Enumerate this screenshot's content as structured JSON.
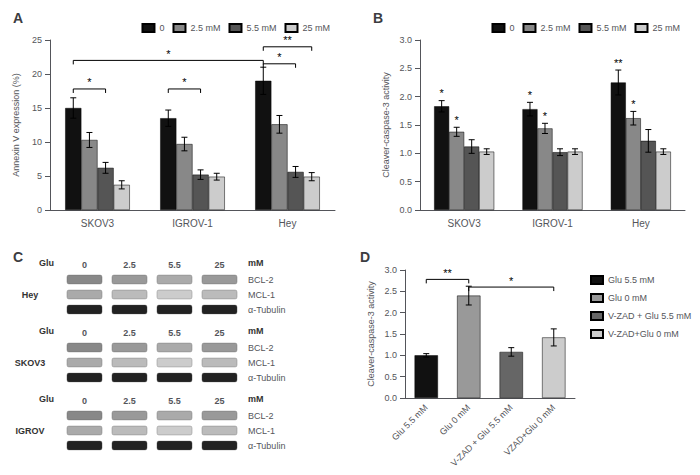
{
  "chart_data": [
    {
      "type": "bar",
      "title": "A",
      "ylabel": "Annexin V expression (%)",
      "categories": [
        "SKOV3",
        "IGROV-1",
        "Hey"
      ],
      "series": [
        {
          "name": "0",
          "color": "#111111",
          "values": [
            15.0,
            13.5,
            19.0
          ],
          "errors": [
            1.5,
            1.2,
            2.0
          ]
        },
        {
          "name": "2.5 mM",
          "color": "#888888",
          "values": [
            10.3,
            9.7,
            12.6
          ],
          "errors": [
            1.1,
            1.0,
            1.3
          ]
        },
        {
          "name": "5.5 mM",
          "color": "#555555",
          "values": [
            6.2,
            5.2,
            5.6
          ],
          "errors": [
            0.8,
            0.7,
            0.8
          ]
        },
        {
          "name": "25 mM",
          "color": "#cccccc",
          "values": [
            3.7,
            4.9,
            4.9
          ],
          "errors": [
            0.6,
            0.5,
            0.6
          ]
        }
      ],
      "ylim": [
        0,
        25
      ],
      "yticks": [
        0,
        5,
        10,
        15,
        20,
        25
      ],
      "grid": false,
      "legend": "upper right",
      "annotations": [
        {
          "text": "*",
          "from": [
            0,
            0
          ],
          "to": [
            0,
            2
          ],
          "y": 17.8
        },
        {
          "text": "*",
          "from": [
            1,
            0
          ],
          "to": [
            1,
            2
          ],
          "y": 17.8
        },
        {
          "text": "*",
          "from": [
            0,
            0
          ],
          "to": [
            2,
            0
          ],
          "y": 22.0
        },
        {
          "text": "**",
          "from": [
            2,
            0
          ],
          "to": [
            2,
            3
          ],
          "y": 24.0
        },
        {
          "text": "*",
          "from": [
            2,
            0
          ],
          "to": [
            2,
            2
          ],
          "y": 21.5
        }
      ]
    },
    {
      "type": "bar",
      "title": "B",
      "ylabel": "Cleaver-caspase-3 activity",
      "categories": [
        "SKOV3",
        "IGROV-1",
        "Hey"
      ],
      "series": [
        {
          "name": "0",
          "color": "#111111",
          "values": [
            1.83,
            1.78,
            2.25
          ],
          "errors": [
            0.1,
            0.12,
            0.22
          ]
        },
        {
          "name": "2.5 mM",
          "color": "#888888",
          "values": [
            1.38,
            1.44,
            1.62
          ],
          "errors": [
            0.08,
            0.09,
            0.12
          ]
        },
        {
          "name": "5.5 mM",
          "color": "#555555",
          "values": [
            1.12,
            1.02,
            1.22
          ],
          "errors": [
            0.12,
            0.06,
            0.2
          ]
        },
        {
          "name": "25 mM",
          "color": "#cccccc",
          "values": [
            1.03,
            1.03,
            1.03
          ],
          "errors": [
            0.05,
            0.05,
            0.05
          ]
        }
      ],
      "ylim": [
        0,
        3.0
      ],
      "yticks": [
        {
          "value": 0,
          "label": "0.0"
        },
        {
          "value": 0.5,
          "label": "0.5"
        },
        {
          "value": 1,
          "label": "1.0"
        },
        {
          "value": 1.5,
          "label": "1.5"
        },
        {
          "value": 2,
          "label": "2.0"
        },
        {
          "value": 2.5,
          "label": "2.5"
        },
        {
          "value": 3,
          "label": "3.0"
        }
      ],
      "grid": false,
      "legend": "upper right",
      "annotations": [
        {
          "text": "*",
          "at": [
            0,
            0
          ]
        },
        {
          "text": "*",
          "at": [
            0,
            1
          ]
        },
        {
          "text": "*",
          "at": [
            1,
            0
          ]
        },
        {
          "text": "*",
          "at": [
            1,
            1
          ]
        },
        {
          "text": "**",
          "at": [
            2,
            0
          ]
        },
        {
          "text": "*",
          "at": [
            2,
            1
          ]
        }
      ]
    },
    {
      "type": "blot",
      "title": "C",
      "categories": [
        "0",
        "2.5",
        "5.5",
        "25"
      ],
      "annotations": [
        "Glu",
        "mM"
      ],
      "groups": [
        "Hey",
        "SKOV3",
        "IGROV"
      ],
      "bands": [
        {
          "name": "BCL-2",
          "colors": [
            "#888888",
            "#999999",
            "#aaaaaa",
            "#999999"
          ]
        },
        {
          "name": "MCL-1",
          "colors": [
            "#aaaaaa",
            "#bbbbbb",
            "#cccccc",
            "#bbbbbb"
          ]
        },
        {
          "name": "α-Tubulin",
          "colors": [
            "#222222",
            "#222222",
            "#222222",
            "#222222"
          ]
        }
      ]
    },
    {
      "type": "bar",
      "title": "D",
      "ylabel": "Cleaver-caspase-3 activity",
      "categories": [
        "Glu 5.5 mM",
        "Glu 0 mM",
        "V-ZAD + Glu 5.5 mM",
        "VZAD+Glu 0 mM"
      ],
      "values": [
        1.0,
        2.4,
        1.08,
        1.42
      ],
      "errors": [
        0.04,
        0.22,
        0.1,
        0.2
      ],
      "colors": [
        "#111111",
        "#999999",
        "#666666",
        "#cccccc"
      ],
      "series": [
        {
          "name": "Glu 5.5 mM",
          "color": "#111111"
        },
        {
          "name": "Glu 0 mM",
          "color": "#999999"
        },
        {
          "name": "V-ZAD + Glu 5.5 mM",
          "color": "#666666"
        },
        {
          "name": "V-ZAD+Glu 0 mM",
          "color": "#cccccc"
        }
      ],
      "ylim": [
        0,
        3.0
      ],
      "yticks": [
        {
          "value": 0,
          "label": "0.0"
        },
        {
          "value": 0.5,
          "label": "0.5"
        },
        {
          "value": 1,
          "label": "1.0"
        },
        {
          "value": 1.5,
          "label": "1.5"
        },
        {
          "value": 2,
          "label": "2.0"
        },
        {
          "value": 2.5,
          "label": "2.5"
        },
        {
          "value": 3,
          "label": "3.0"
        }
      ],
      "grid": false,
      "legend": "upper right",
      "annotations": [
        {
          "text": "**",
          "from": 0,
          "to": 1,
          "y": 2.78
        },
        {
          "text": "*",
          "from": 1,
          "to": 3,
          "y": 2.6
        }
      ]
    }
  ]
}
